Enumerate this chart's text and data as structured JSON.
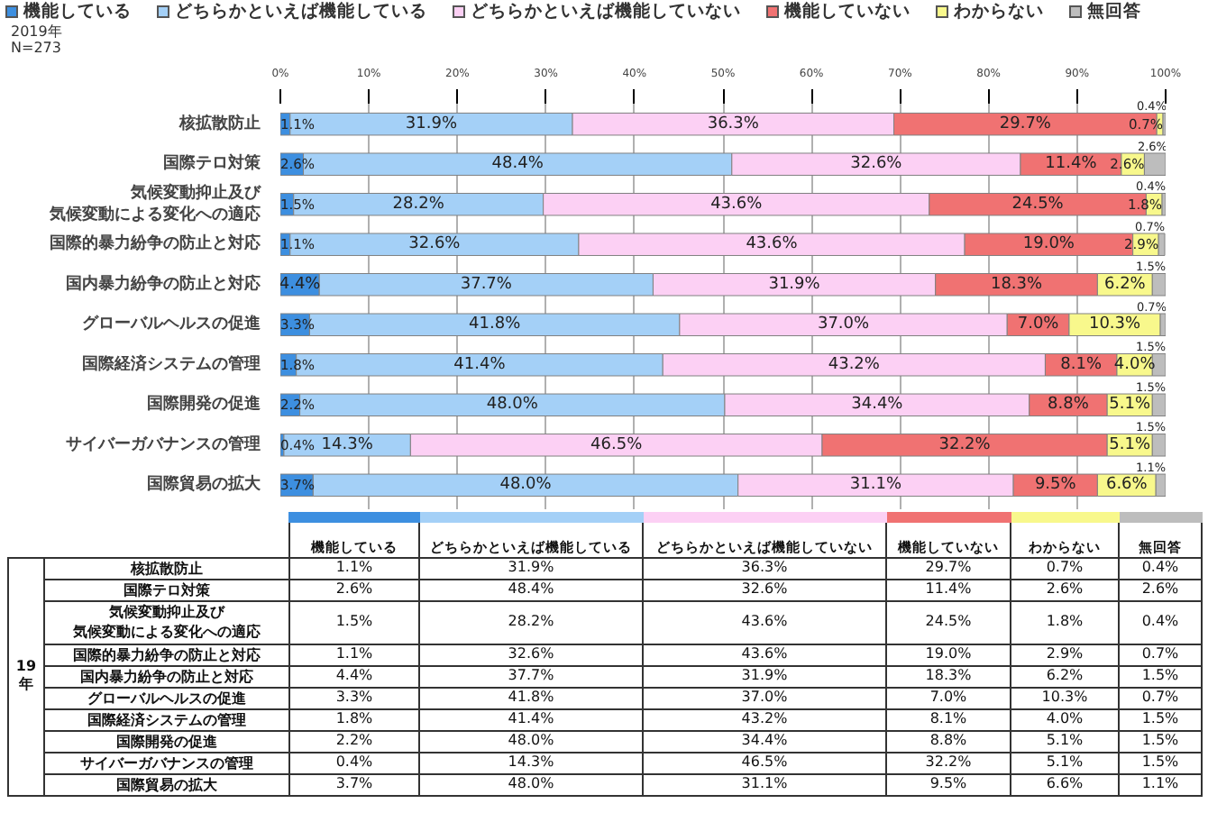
{
  "chart_data": {
    "type": "bar",
    "orientation": "horizontal",
    "stacked": true,
    "categories": [
      "核拡散防止",
      "国際テロ対策",
      "気候変動抑止及び気候変動による変化への適応",
      "国際的暴力紛争の防止と対応",
      "国内暴力紛争の防止と対応",
      "グローバルヘルスの促進",
      "国際経済システムの管理",
      "国際開発の促進",
      "サイバーガバナンスの管理",
      "国際貿易の拡大"
    ],
    "series": [
      {
        "name": "機能している",
        "color": "#3d8fe0",
        "values": [
          1.1,
          2.6,
          1.5,
          1.1,
          4.4,
          3.3,
          1.8,
          2.2,
          0.4,
          3.7
        ],
        "value_labels": [
          "1.1%",
          "2.6%",
          "1.5%",
          "1.1%",
          "4.4%",
          "3.3%",
          "1.8%",
          "2.2%",
          "0.4%",
          "3.7%"
        ]
      },
      {
        "name": "どちらかといえば機能している",
        "color": "#a4d0f7",
        "values": [
          31.9,
          48.4,
          28.2,
          32.6,
          37.7,
          41.8,
          41.4,
          48.0,
          14.3,
          48.0
        ],
        "value_labels": [
          "31.9%",
          "48.4%",
          "28.2%",
          "32.6%",
          "37.7%",
          "41.8%",
          "41.4%",
          "48.0%",
          "14.3%",
          "48.0%"
        ]
      },
      {
        "name": "どちらかといえば機能していない",
        "color": "#fcd0f4",
        "values": [
          36.3,
          32.6,
          43.6,
          43.6,
          31.9,
          37.0,
          43.2,
          34.4,
          46.5,
          31.1
        ],
        "value_labels": [
          "36.3%",
          "32.6%",
          "43.6%",
          "43.6%",
          "31.9%",
          "37.0%",
          "43.2%",
          "34.4%",
          "46.5%",
          "31.1%"
        ]
      },
      {
        "name": "機能していない",
        "color": "#f07272",
        "values": [
          29.7,
          11.4,
          24.5,
          19.0,
          18.3,
          7.0,
          8.1,
          8.8,
          32.2,
          9.5
        ],
        "value_labels": [
          "29.7%",
          "11.4%",
          "24.5%",
          "19.0%",
          "18.3%",
          "7.0%",
          "8.1%",
          "8.8%",
          "32.2%",
          "9.5%"
        ]
      },
      {
        "name": "わからない",
        "color": "#f8f88c",
        "values": [
          0.7,
          2.6,
          1.8,
          2.9,
          6.2,
          10.3,
          4.0,
          5.1,
          5.1,
          6.6
        ],
        "value_labels": [
          "0.7%",
          "2.6%",
          "1.8%",
          "2.9%",
          "6.2%",
          "10.3%",
          "4.0%",
          "5.1%",
          "5.1%",
          "6.6%"
        ]
      },
      {
        "name": "無回答",
        "color": "#bdbdbd",
        "values": [
          0.4,
          2.6,
          0.4,
          0.7,
          1.5,
          0.7,
          1.5,
          1.5,
          1.5,
          1.1
        ],
        "value_labels": [
          "0.4%",
          "2.6%",
          "0.4%",
          "0.7%",
          "1.5%",
          "0.7%",
          "1.5%",
          "1.5%",
          "1.5%",
          "1.1%"
        ]
      }
    ],
    "xlim": [
      0,
      100
    ],
    "xticks": [
      {
        "value": 0,
        "label": "0%"
      },
      {
        "value": 10,
        "label": "10%"
      },
      {
        "value": 20,
        "label": "20%"
      },
      {
        "value": 30,
        "label": "30%"
      },
      {
        "value": 40,
        "label": "40%"
      },
      {
        "value": 50,
        "label": "50%"
      },
      {
        "value": 60,
        "label": "60%"
      },
      {
        "value": 70,
        "label": "70%"
      },
      {
        "value": 80,
        "label": "80%"
      },
      {
        "value": 90,
        "label": "90%"
      },
      {
        "value": 100,
        "label": "100%"
      }
    ],
    "grid": "x",
    "legend": "top",
    "annotations": [
      "2019年\nN=273",
      "19年"
    ]
  }
}
